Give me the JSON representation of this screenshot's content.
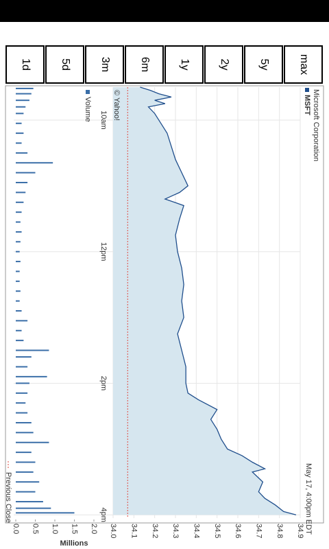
{
  "buttons": [
    "1d",
    "5d",
    "3m",
    "6m",
    "1y",
    "2y",
    "5y",
    "max"
  ],
  "chart_data": {
    "type": "line",
    "title": "Microsoft Corporation",
    "subtitle": "May 17, 4:00pm EDT",
    "source": "© Yahoo!",
    "y_label": "Millions",
    "reference_label": "Previous Close",
    "reference_value": 34.07,
    "x": [
      9.5,
      9.55,
      9.6,
      9.65,
      9.7,
      9.75,
      9.8,
      9.9,
      10.0,
      10.2,
      10.4,
      10.6,
      10.8,
      11.0,
      11.1,
      11.2,
      11.3,
      11.5,
      11.75,
      12.0,
      12.25,
      12.5,
      12.75,
      13.0,
      13.25,
      13.5,
      13.75,
      14.0,
      14.15,
      14.25,
      14.4,
      14.55,
      14.7,
      14.85,
      15.0,
      15.1,
      15.2,
      15.3,
      15.35,
      15.5,
      15.65,
      15.75,
      15.85,
      15.95,
      16.0
    ],
    "series": [
      {
        "name": "MSFT",
        "color": "#1f4e8c",
        "values": [
          34.13,
          34.18,
          34.22,
          34.28,
          34.2,
          34.25,
          34.17,
          34.2,
          34.22,
          34.26,
          34.28,
          34.3,
          34.33,
          34.36,
          34.32,
          34.25,
          34.34,
          34.32,
          34.3,
          34.31,
          34.33,
          34.34,
          34.33,
          34.34,
          34.31,
          34.33,
          34.35,
          34.35,
          34.36,
          34.41,
          34.5,
          34.47,
          34.5,
          34.52,
          34.55,
          34.62,
          34.67,
          34.73,
          34.67,
          34.72,
          34.7,
          34.73,
          34.78,
          34.82,
          34.88
        ]
      }
    ],
    "volume": {
      "name": "Volume",
      "color": "#3a6ea8",
      "x": [
        9.52,
        9.6,
        9.7,
        9.8,
        9.9,
        10.05,
        10.2,
        10.35,
        10.5,
        10.65,
        10.8,
        10.95,
        11.1,
        11.25,
        11.4,
        11.55,
        11.7,
        11.85,
        12.0,
        12.15,
        12.3,
        12.45,
        12.6,
        12.75,
        12.9,
        13.05,
        13.2,
        13.35,
        13.5,
        13.6,
        13.75,
        13.9,
        14.0,
        14.15,
        14.3,
        14.45,
        14.6,
        14.75,
        14.9,
        15.05,
        15.2,
        15.35,
        15.5,
        15.65,
        15.8,
        15.9,
        15.97
      ],
      "values": [
        0.45,
        0.4,
        0.35,
        0.25,
        0.2,
        0.15,
        0.2,
        0.15,
        0.3,
        0.95,
        0.5,
        0.3,
        0.25,
        0.2,
        0.15,
        0.12,
        0.15,
        0.12,
        0.1,
        0.12,
        0.1,
        0.1,
        0.12,
        0.1,
        0.15,
        0.3,
        0.15,
        0.2,
        0.85,
        0.4,
        0.3,
        0.8,
        0.35,
        0.3,
        0.25,
        0.3,
        0.4,
        0.45,
        0.85,
        0.4,
        0.5,
        0.45,
        0.6,
        0.5,
        0.7,
        0.9,
        1.5
      ]
    },
    "xlim": [
      9.5,
      16.05
    ],
    "xticks": [
      {
        "value": 10,
        "label": "10am"
      },
      {
        "value": 12,
        "label": "12pm"
      },
      {
        "value": 14,
        "label": "2pm"
      },
      {
        "value": 16,
        "label": "4pm"
      }
    ],
    "ylim": [
      34.0,
      34.9
    ],
    "yticks": [
      {
        "value": 34.0,
        "label": "34.0"
      },
      {
        "value": 34.1,
        "label": "34.1"
      },
      {
        "value": 34.2,
        "label": "34.2"
      },
      {
        "value": 34.3,
        "label": "34.3"
      },
      {
        "value": 34.4,
        "label": "34.4"
      },
      {
        "value": 34.5,
        "label": "34.5"
      },
      {
        "value": 34.6,
        "label": "34.6"
      },
      {
        "value": 34.7,
        "label": "34.7"
      },
      {
        "value": 34.8,
        "label": "34.8"
      },
      {
        "value": 34.9,
        "label": "34.9"
      }
    ],
    "y2lim": [
      0,
      2.0
    ],
    "y2ticks": [
      {
        "value": 0,
        "label": "0.0"
      },
      0.5,
      {
        "value": 1,
        "label": "1.0"
      },
      1.5,
      {
        "value": 2,
        "label": "2.0"
      }
    ],
    "grid": true
  }
}
